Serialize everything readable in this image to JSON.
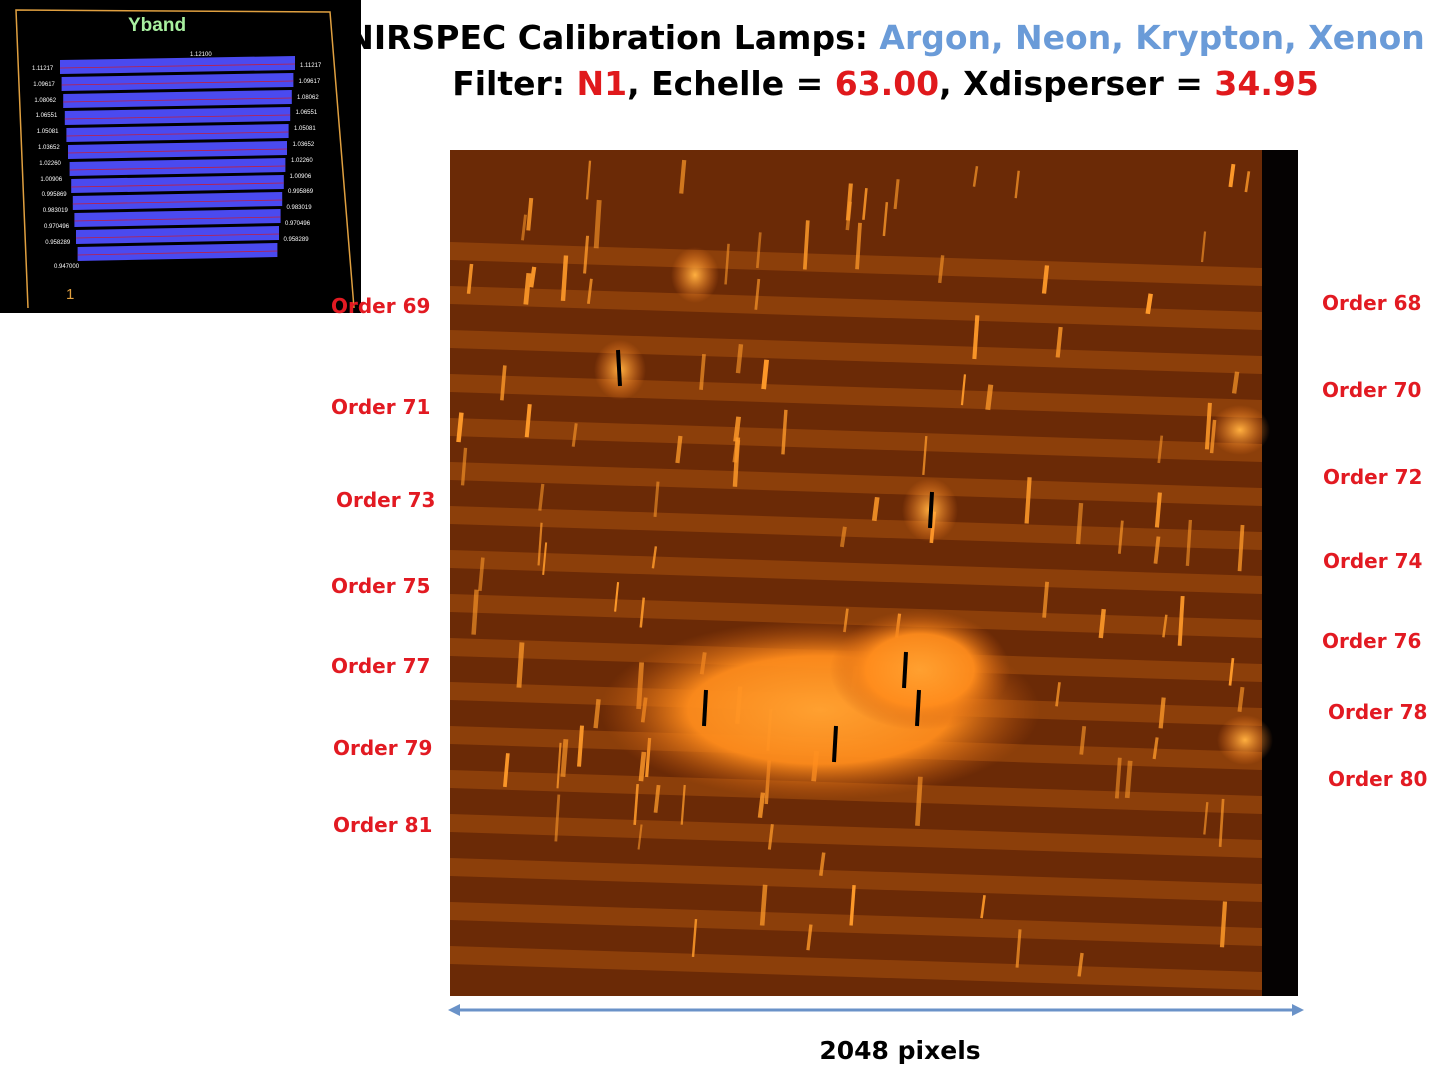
{
  "inset": {
    "title": "Yband",
    "footer": "1",
    "top_value": "1.12100",
    "bottom_value": "0.947000",
    "left_values": [
      "1.11217",
      "1.09617",
      "1.08062",
      "1.06551",
      "1.05081",
      "1.03652",
      "1.02260",
      "1.00906",
      "0.995869",
      "0.983019",
      "0.970496",
      "0.958289"
    ],
    "right_values": [
      "1.11217",
      "1.09617",
      "1.08062",
      "1.06551",
      "1.05081",
      "1.03652",
      "1.02260",
      "1.00906",
      "0.995869",
      "0.983019",
      "0.970496",
      "0.958289"
    ],
    "bar_color": "#4a4af0",
    "border_color": "#e0a040"
  },
  "title": {
    "line1_prefix": "NIRSPEC Calibration Lamps:",
    "line1_lamps": "Argon, Neon, Krypton, Xenon",
    "line2_filter_label": "Filter:",
    "line2_filter_value": "N1",
    "line2_echelle_label": ", Echelle =",
    "line2_echelle_value": "63.00",
    "line2_xdisp_label": ", Xdisperser =",
    "line2_xdisp_value": "34.95"
  },
  "orders_left": [
    "Order  69",
    "Order  71",
    "Order 73",
    "Order 75",
    "Order 77",
    "Order 79",
    "Order 81"
  ],
  "orders_right": [
    "Order 68",
    "Order 70",
    "Order 72",
    "Order 74",
    "Order 76",
    "Order 78",
    "Order 80"
  ],
  "axis_label": "2048 pixels",
  "colors": {
    "accent_blue": "#6a9bd8",
    "accent_red": "#e0191c",
    "frame_bg": "#6b2a06",
    "line_glow": "#ff9a2a"
  }
}
